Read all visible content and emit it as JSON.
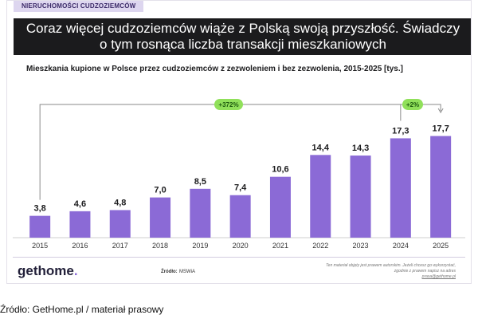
{
  "tag": "NIERUCHOMOŚCI CUDZOZIEMCÓW",
  "headline_lines": [
    "Coraz więcej cudzoziemców wiąże z Polską swoją przyszłość. Świadczy",
    "o tym rosnąca liczba transakcji mieszkaniowych"
  ],
  "colors": {
    "bar": "#8b6ad6",
    "badge": "#90e05a",
    "header_bg": "#1b1b1d",
    "tag_bg": "#ddd6ef"
  },
  "chart_data": {
    "type": "bar",
    "title": "Mieszkania kupione w Polsce przez cudzoziemców z zezwoleniem i bez zezwolenia, 2015-2025 [tys.]",
    "categories": [
      "2015",
      "2016",
      "2017",
      "2018",
      "2019",
      "2020",
      "2021",
      "2022",
      "2023",
      "2024",
      "2025"
    ],
    "values": [
      3.8,
      4.6,
      4.8,
      7.0,
      8.5,
      7.4,
      10.6,
      14.4,
      14.3,
      17.3,
      17.7
    ],
    "value_labels": [
      "3,8",
      "4,6",
      "4,8",
      "7,0",
      "8,5",
      "7,4",
      "10,6",
      "14,4",
      "14,3",
      "17,3",
      "17,7"
    ],
    "ylim": [
      0,
      20
    ],
    "grid": false,
    "annotations": [
      {
        "text": "+372%",
        "from": "2015",
        "to": "2025"
      },
      {
        "text": "+2%",
        "from": "2024",
        "to": "2025"
      }
    ]
  },
  "footer": {
    "logo_main": "gethome",
    "logo_dot": ".",
    "source_label": "Źródło:",
    "source_value": "MSWiA",
    "disclaimer_lines": [
      "Ten materiał objęty jest prawem autorskim. Jeżeli chcesz go wykorzystać,",
      "zgodnie z prawem napisz na adres"
    ],
    "disclaimer_link": "prasa@gethome.pl"
  },
  "caption": "Źródło: GetHome.pl / materiał prasowy"
}
